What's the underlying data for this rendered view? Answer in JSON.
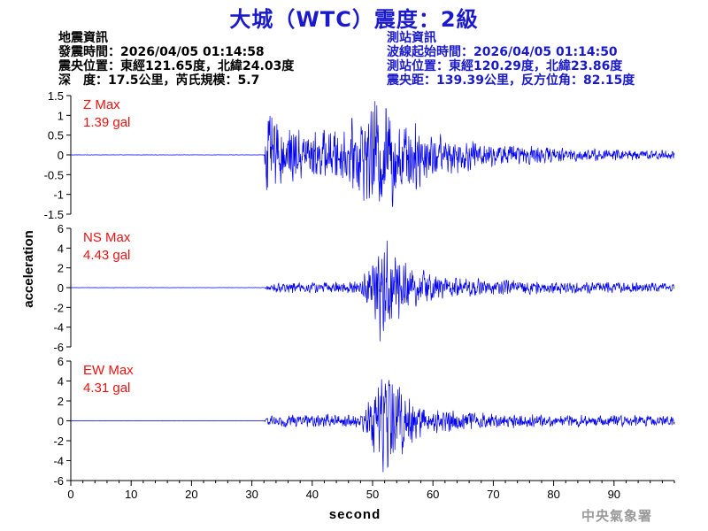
{
  "title": "大城（WTC）震度：2級",
  "earthquake_info": {
    "heading": "地震資訊",
    "origin_time": "發震時間：2026/04/05 01:14:58",
    "epicenter": "震央位置：東經121.65度，北緯24.03度",
    "depth_magnitude": "深　度：17.5公里，芮氏規模：5.7"
  },
  "station_info": {
    "heading": "測站資訊",
    "wave_start": "波線起始時間：2026/04/05 01:14:50",
    "location": "測站位置：東經120.29度，北緯23.86度",
    "distance": "震央距：139.39公里，反方位角：82.15度"
  },
  "footer": "中央氣象署",
  "colors": {
    "title": "#1a1acc",
    "trace": "#0000ee",
    "max_label": "#ee1111",
    "axis": "#000000"
  },
  "chart_data": [
    {
      "type": "line",
      "component": "Z",
      "max_label": "Z Max",
      "max_value": "1.39 gal",
      "ylim": [
        -1.5,
        1.5
      ],
      "yticks": [
        -1.5,
        -1,
        -0.5,
        0,
        0.5,
        1,
        1.5
      ],
      "ytick_labels": [
        "-1.5",
        "-1",
        "-0.5",
        "0",
        "0.5",
        "1",
        "1.5"
      ],
      "envelope": {
        "x": [
          0,
          32,
          32.6,
          33,
          35,
          40,
          45,
          49,
          51,
          53,
          56,
          60,
          65,
          70,
          80,
          90,
          100
        ],
        "amp": [
          0.003,
          0.003,
          1.0,
          0.7,
          0.55,
          0.45,
          0.5,
          0.85,
          1.05,
          1.0,
          0.75,
          0.45,
          0.3,
          0.22,
          0.15,
          0.1,
          0.09
        ]
      }
    },
    {
      "type": "line",
      "component": "NS",
      "max_label": "NS Max",
      "max_value": "4.43 gal",
      "ylim": [
        -6,
        6
      ],
      "yticks": [
        -6,
        -4,
        -2,
        0,
        2,
        4,
        6
      ],
      "ytick_labels": [
        "-6",
        "-4",
        "-2",
        "0",
        "2",
        "4",
        "6"
      ],
      "envelope": {
        "x": [
          0,
          32,
          33,
          40,
          48,
          50,
          51.5,
          53,
          56,
          60,
          65,
          70,
          80,
          90,
          100
        ],
        "amp": [
          0.01,
          0.01,
          0.35,
          0.4,
          0.5,
          2.5,
          4.2,
          3.0,
          1.8,
          1.0,
          0.8,
          0.6,
          0.45,
          0.4,
          0.3
        ]
      }
    },
    {
      "type": "line",
      "component": "EW",
      "max_label": "EW Max",
      "max_value": "4.31 gal",
      "ylim": [
        -6,
        6
      ],
      "yticks": [
        -6,
        -4,
        -2,
        0,
        2,
        4,
        6
      ],
      "ytick_labels": [
        "-6",
        "-4",
        "-2",
        "0",
        "2",
        "4",
        "6"
      ],
      "envelope": {
        "x": [
          0,
          32,
          33,
          40,
          48,
          50,
          52,
          54,
          57,
          60,
          65,
          70,
          80,
          90,
          100
        ],
        "amp": [
          0.01,
          0.01,
          0.45,
          0.45,
          0.5,
          2.2,
          4.2,
          3.0,
          1.6,
          1.0,
          0.7,
          0.55,
          0.45,
          0.4,
          0.35
        ]
      }
    }
  ],
  "x_axis": {
    "label": "second",
    "xlim": [
      0,
      100
    ],
    "ticks": [
      0,
      10,
      20,
      30,
      40,
      50,
      60,
      70,
      80,
      90
    ],
    "tick_labels": [
      "0",
      "10",
      "20",
      "30",
      "40",
      "50",
      "60",
      "70",
      "80",
      "90"
    ]
  },
  "y_axis_label": "acceleration"
}
